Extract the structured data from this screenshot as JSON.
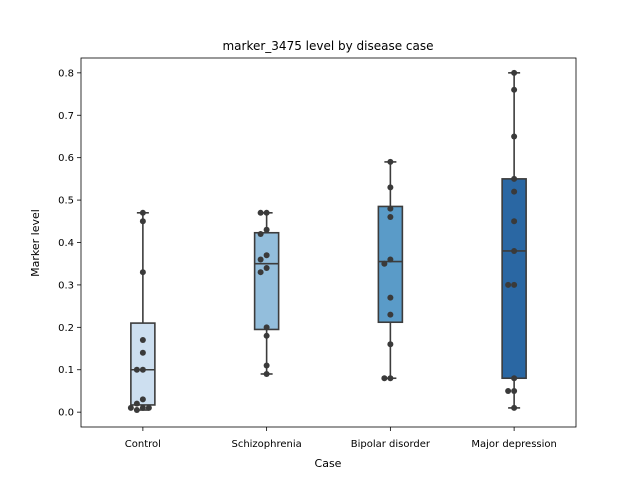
{
  "chart_data": {
    "type": "box",
    "title": "marker_3475 level by disease case",
    "xlabel": "Case",
    "ylabel": "Marker level",
    "ylim": [
      -0.035,
      0.835
    ],
    "yticks": [
      0.0,
      0.1,
      0.2,
      0.3,
      0.4,
      0.5,
      0.6,
      0.7,
      0.8
    ],
    "ytick_labels": [
      "0.0",
      "0.1",
      "0.2",
      "0.3",
      "0.4",
      "0.5",
      "0.6",
      "0.7",
      "0.8"
    ],
    "grid": false,
    "legend": "none",
    "categories": [
      "Control",
      "Schizophrenia",
      "Bipolar disorder",
      "Major depression"
    ],
    "box_colors": [
      "#cddff0",
      "#93bedc",
      "#5a9bc8",
      "#2a67a3"
    ],
    "point_color": "#3a3a3a",
    "boxes": [
      {
        "whisker_low": 0.005,
        "q1": 0.017,
        "median": 0.1,
        "q3": 0.21,
        "whisker_high": 0.47
      },
      {
        "whisker_low": 0.09,
        "q1": 0.195,
        "median": 0.35,
        "q3": 0.423,
        "whisker_high": 0.47
      },
      {
        "whisker_low": 0.08,
        "q1": 0.212,
        "median": 0.355,
        "q3": 0.485,
        "whisker_high": 0.59
      },
      {
        "whisker_low": 0.01,
        "q1": 0.08,
        "median": 0.38,
        "q3": 0.55,
        "whisker_high": 0.8
      }
    ],
    "points": [
      [
        0.47,
        0.45,
        0.33,
        0.17,
        0.14,
        0.1,
        0.1,
        0.03,
        0.02,
        0.01,
        0.01,
        0.01,
        0.005
      ],
      [
        0.47,
        0.47,
        0.43,
        0.42,
        0.37,
        0.36,
        0.34,
        0.33,
        0.2,
        0.18,
        0.11,
        0.09
      ],
      [
        0.59,
        0.53,
        0.48,
        0.46,
        0.36,
        0.35,
        0.27,
        0.23,
        0.16,
        0.08,
        0.08
      ],
      [
        0.8,
        0.76,
        0.65,
        0.55,
        0.52,
        0.45,
        0.38,
        0.3,
        0.3,
        0.08,
        0.05,
        0.05,
        0.01
      ]
    ]
  }
}
